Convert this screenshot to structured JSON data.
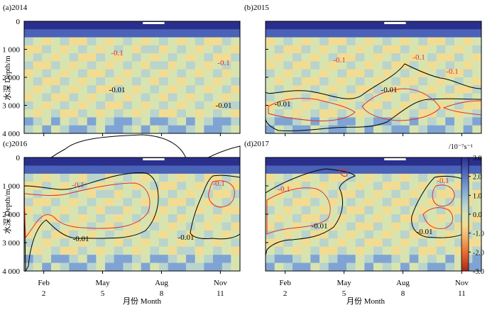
{
  "colors": {
    "outer_contour": "#000000",
    "inner_contour": "#e0302a",
    "frame": "#000000"
  },
  "figure": {
    "y_axis_label": "水深 Depth/m",
    "x_axis_label": "月份 Month",
    "colorbar_unit": "/10⁻⁷s⁻¹"
  },
  "chart_data": [
    {
      "type": "heatmap",
      "title": "(a)2014",
      "y_ticks": [
        "0",
        "1 000",
        "2 000",
        "3 000",
        "4 000"
      ],
      "ylim": [
        4000,
        0
      ],
      "xlim": [
        1,
        12
      ],
      "x_ticks": [],
      "contour_labels": [
        "-0.1",
        "-0.01",
        "-0.1",
        "-0.01"
      ]
    },
    {
      "type": "heatmap",
      "title": "(b)2015",
      "y_ticks": [],
      "ylim": [
        4000,
        0
      ],
      "xlim": [
        1,
        12
      ],
      "x_ticks": [],
      "contour_labels": [
        "-0.1",
        "-0.1",
        "-0.1",
        "-0.01",
        "-0.01"
      ]
    },
    {
      "type": "heatmap",
      "title": "(c)2016",
      "y_ticks": [
        "0",
        "1 000",
        "2 000",
        "3 000",
        "4 000"
      ],
      "ylim": [
        4000,
        0
      ],
      "xlim": [
        1,
        12
      ],
      "x_ticks": [
        {
          "month": 2,
          "name": "Feb",
          "num": "2"
        },
        {
          "month": 5,
          "name": "May",
          "num": "5"
        },
        {
          "month": 8,
          "name": "Aug",
          "num": "8"
        },
        {
          "month": 11,
          "name": "Nov",
          "num": "11"
        }
      ],
      "contour_labels": [
        "-0.1",
        "-0.1",
        "-0.01",
        "-0.01"
      ]
    },
    {
      "type": "heatmap",
      "title": "(d)2017",
      "y_ticks": [],
      "ylim": [
        4000,
        0
      ],
      "xlim": [
        1,
        12
      ],
      "x_ticks": [
        {
          "month": 2,
          "name": "Feb",
          "num": "2"
        },
        {
          "month": 5,
          "name": "May",
          "num": "5"
        },
        {
          "month": 8,
          "name": "Aug",
          "num": "8"
        },
        {
          "month": 11,
          "name": "Nov",
          "num": "11"
        }
      ],
      "contour_labels": [
        "-0.1",
        "-0.01",
        "-0.1",
        "-0.01"
      ]
    }
  ],
  "colorbar": {
    "range": [
      -3.0,
      3.0
    ],
    "ticks": [
      "3.0",
      "2.0",
      "1.0",
      "0.0",
      "-1.0",
      "-2.0",
      "-3.0"
    ],
    "colors": [
      "#2b2f8c",
      "#4a62b7",
      "#7fa4d4",
      "#b8d4cd",
      "#d8e4b0",
      "#f2dc92",
      "#f3a860",
      "#e2612f",
      "#a8271f"
    ]
  }
}
